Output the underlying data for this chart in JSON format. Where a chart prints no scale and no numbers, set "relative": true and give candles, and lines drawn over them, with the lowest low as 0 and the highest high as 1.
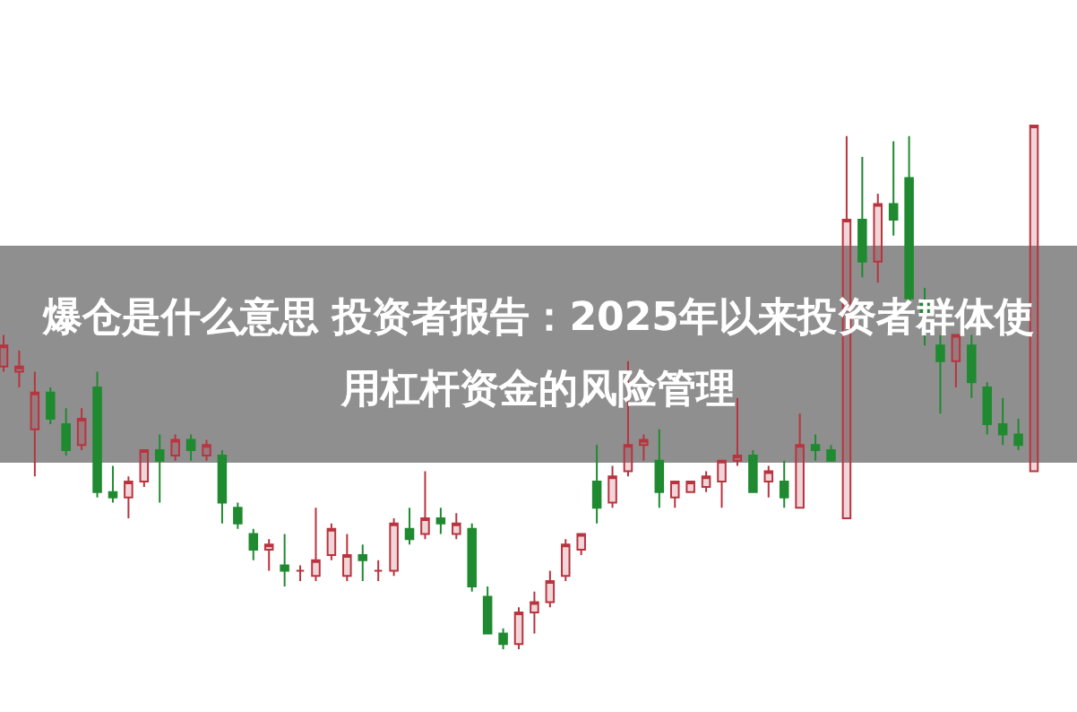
{
  "chart_data": {
    "type": "candlestick",
    "relative": true,
    "title": "爆仓是什么意思 投资者报告：2025年以来投资者群体使用杠杆资金的风险管理",
    "categories": [
      null,
      null,
      null,
      null,
      null,
      null,
      null,
      null,
      null,
      null,
      null,
      null,
      null,
      null,
      null,
      null,
      null,
      null,
      null,
      null,
      null,
      null,
      null,
      null,
      null,
      null,
      null,
      null,
      null,
      null,
      null,
      null,
      null,
      null,
      null,
      null,
      null,
      null,
      null,
      null,
      null,
      null,
      null,
      null,
      null,
      null,
      null,
      null,
      null,
      null,
      null,
      null,
      null,
      null,
      null,
      null,
      null,
      null,
      null,
      null,
      null,
      null,
      null,
      null,
      null,
      null,
      null
    ],
    "series": [
      {
        "colors": [
          "#b8343f",
          "#b8343f",
          "#b8343f",
          "#1f8a30",
          "#1f8a30",
          "#b8343f",
          "#1f8a30",
          "#1f8a30",
          "#b8343f",
          "#b8343f",
          "#1f8a30",
          "#b8343f",
          "#1f8a30",
          "#b8343f",
          "#1f8a30",
          "#1f8a30",
          "#1f8a30",
          "#b8343f",
          "#1f8a30",
          "#b8343f",
          "#b8343f",
          "#b8343f",
          "#b8343f",
          "#1f8a30",
          "#b8343f",
          "#b8343f",
          "#1f8a30",
          "#b8343f",
          "#1f8a30",
          "#b8343f",
          "#1f8a30",
          "#1f8a30",
          "#1f8a30",
          "#b8343f",
          "#b8343f",
          "#b8343f",
          "#b8343f",
          "#b8343f",
          "#1f8a30",
          "#b8343f",
          "#b8343f",
          "#b8343f",
          "#1f8a30",
          "#b8343f",
          "#b8343f",
          "#b8343f",
          "#b8343f",
          "#b8343f",
          "#1f8a30",
          "#b8343f",
          "#1f8a30",
          "#b8343f",
          "#1f8a30",
          "#1f8a30",
          "#b8343f",
          "#1f8a30",
          "#b8343f",
          "#1f8a30",
          "#1f8a30",
          "#1f8a30",
          "#1f8a30",
          "#b8343f",
          "#1f8a30",
          "#1f8a30",
          "#1f8a30",
          "#1f8a30",
          "#b8343f"
        ],
        "ohlc": [
          [
            0.54,
            0.6,
            0.53,
            0.58
          ],
          [
            0.53,
            0.57,
            0.5,
            0.54
          ],
          [
            0.42,
            0.53,
            0.33,
            0.49
          ],
          [
            0.49,
            0.5,
            0.43,
            0.44
          ],
          [
            0.43,
            0.46,
            0.37,
            0.38
          ],
          [
            0.39,
            0.46,
            0.38,
            0.44
          ],
          [
            0.5,
            0.53,
            0.29,
            0.3
          ],
          [
            0.3,
            0.35,
            0.28,
            0.29
          ],
          [
            0.29,
            0.33,
            0.25,
            0.32
          ],
          [
            0.32,
            0.38,
            0.31,
            0.38
          ],
          [
            0.38,
            0.41,
            0.28,
            0.36
          ],
          [
            0.37,
            0.41,
            0.36,
            0.4
          ],
          [
            0.4,
            0.41,
            0.36,
            0.38
          ],
          [
            0.37,
            0.4,
            0.36,
            0.39
          ],
          [
            0.37,
            0.38,
            0.24,
            0.28
          ],
          [
            0.27,
            0.28,
            0.23,
            0.24
          ],
          [
            0.22,
            0.23,
            0.17,
            0.19
          ],
          [
            0.19,
            0.21,
            0.15,
            0.2
          ],
          [
            0.16,
            0.22,
            0.12,
            0.15
          ],
          [
            0.15,
            0.16,
            0.13,
            0.15
          ],
          [
            0.14,
            0.27,
            0.13,
            0.17
          ],
          [
            0.18,
            0.24,
            0.17,
            0.23
          ],
          [
            0.14,
            0.22,
            0.13,
            0.18
          ],
          [
            0.18,
            0.2,
            0.13,
            0.17
          ],
          [
            0.15,
            0.17,
            0.13,
            0.15
          ],
          [
            0.15,
            0.25,
            0.14,
            0.24
          ],
          [
            0.23,
            0.27,
            0.2,
            0.21
          ],
          [
            0.22,
            0.34,
            0.21,
            0.25
          ],
          [
            0.25,
            0.27,
            0.22,
            0.24
          ],
          [
            0.22,
            0.26,
            0.21,
            0.24
          ],
          [
            0.23,
            0.24,
            0.11,
            0.12
          ],
          [
            0.1,
            0.12,
            0.03,
            0.03
          ],
          [
            0.03,
            0.04,
            0,
            0.01
          ],
          [
            0.01,
            0.08,
            0,
            0.07
          ],
          [
            0.07,
            0.11,
            0.03,
            0.09
          ],
          [
            0.09,
            0.15,
            0.08,
            0.13
          ],
          [
            0.14,
            0.21,
            0.13,
            0.2
          ],
          [
            0.19,
            0.22,
            0.18,
            0.22
          ],
          [
            0.32,
            0.39,
            0.24,
            0.27
          ],
          [
            0.28,
            0.35,
            0.27,
            0.33
          ],
          [
            0.34,
            0.55,
            0.33,
            0.39
          ],
          [
            0.39,
            0.41,
            0.36,
            0.4
          ],
          [
            0.36,
            0.42,
            0.27,
            0.3
          ],
          [
            0.29,
            0.32,
            0.27,
            0.32
          ],
          [
            0.3,
            0.32,
            0.3,
            0.32
          ],
          [
            0.31,
            0.34,
            0.3,
            0.33
          ],
          [
            0.32,
            0.36,
            0.27,
            0.36
          ],
          [
            0.36,
            0.48,
            0.35,
            0.37
          ],
          [
            0.37,
            0.38,
            0.3,
            0.3
          ],
          [
            0.32,
            0.35,
            0.29,
            0.34
          ],
          [
            0.32,
            0.36,
            0.27,
            0.29
          ],
          [
            0.27,
            0.45,
            0.27,
            0.39
          ],
          [
            0.39,
            0.41,
            0.36,
            0.38
          ],
          [
            0.38,
            0.39,
            0.36,
            0.36
          ],
          [
            0.25,
            0.98,
            0.25,
            0.82
          ],
          [
            0.82,
            0.94,
            0.71,
            0.74
          ],
          [
            0.74,
            0.87,
            0.7,
            0.85
          ],
          [
            0.85,
            0.97,
            0.79,
            0.82
          ],
          [
            0.9,
            0.98,
            0.66,
            0.67
          ],
          [
            0.66,
            0.69,
            0.58,
            0.64
          ],
          [
            0.58,
            0.6,
            0.45,
            0.55
          ],
          [
            0.55,
            0.6,
            0.5,
            0.6
          ],
          [
            0.58,
            0.6,
            0.48,
            0.51
          ],
          [
            0.5,
            0.51,
            0.41,
            0.43
          ],
          [
            0.43,
            0.48,
            0.39,
            0.41
          ],
          [
            0.41,
            0.44,
            0.38,
            0.39
          ],
          [
            0.34,
            1,
            0.34,
            1
          ]
        ]
      }
    ]
  }
}
